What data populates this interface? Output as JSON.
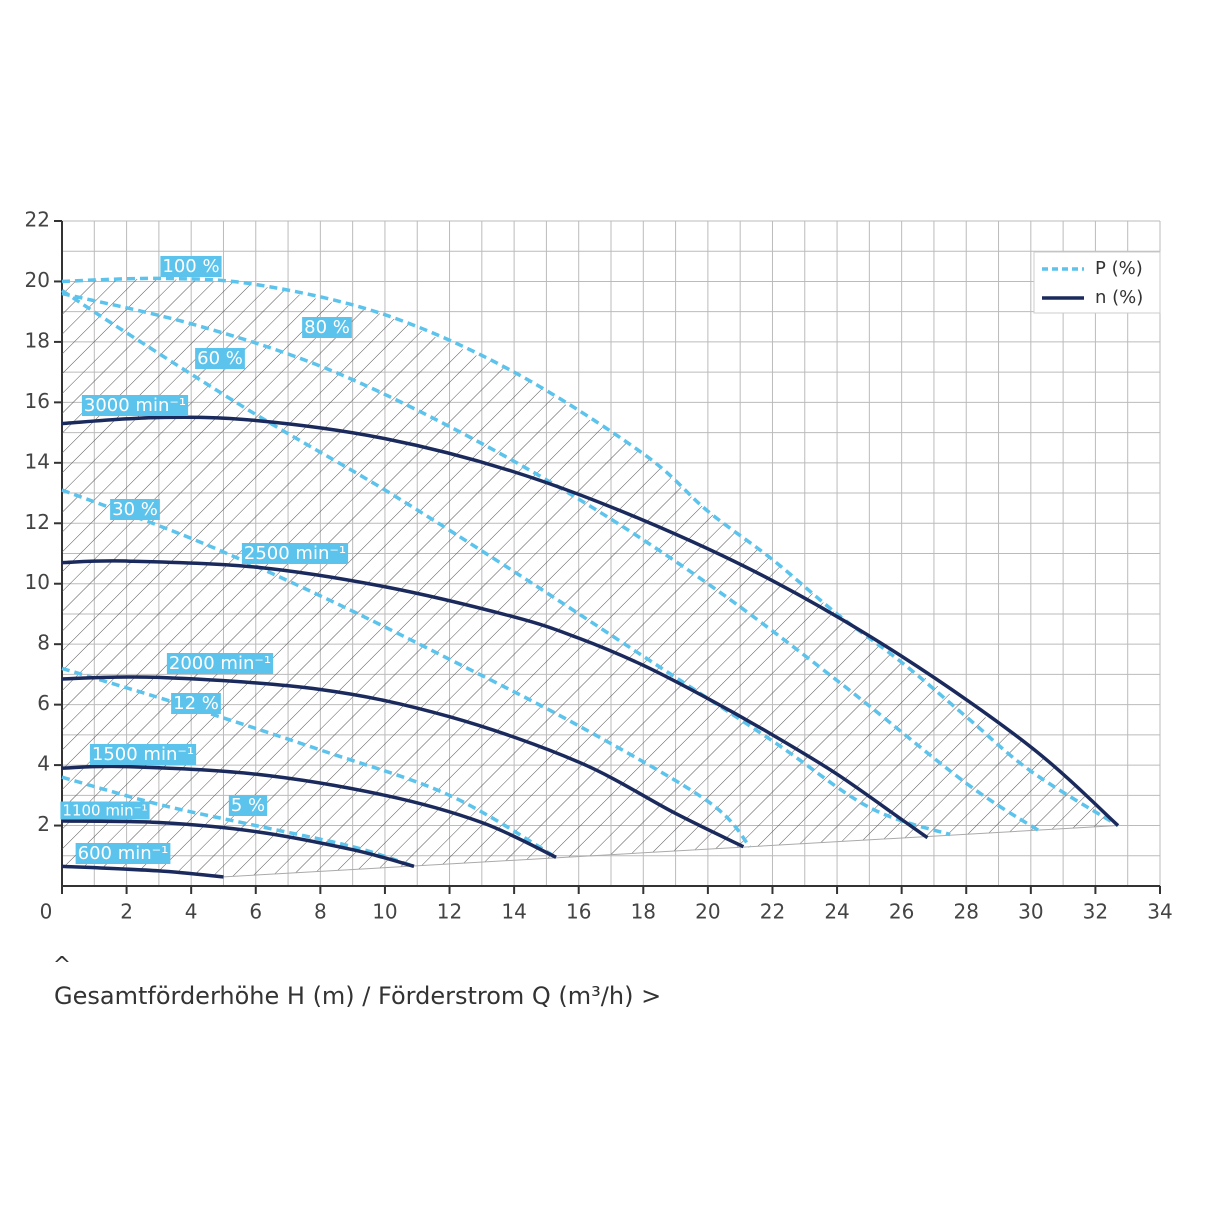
{
  "chart_data": {
    "type": "line",
    "xlim": [
      0,
      34
    ],
    "ylim": [
      0,
      22
    ],
    "xticks": [
      0,
      2,
      4,
      6,
      8,
      10,
      12,
      14,
      16,
      18,
      20,
      22,
      24,
      26,
      28,
      30,
      32,
      34
    ],
    "yticks": [
      2,
      4,
      6,
      8,
      10,
      12,
      14,
      16,
      18,
      20,
      22
    ],
    "grid": true,
    "minor_grid": 1,
    "legend_position": "upper right",
    "legend": [
      {
        "name": "P (%)",
        "color": "#5bc3ec",
        "dashed": true
      },
      {
        "name": "n (%)",
        "color": "#1b2a5c",
        "dashed": false
      }
    ],
    "axis_marker": "^",
    "axis_title": "Gesamtförderhöhe H (m) / Förderstrom Q (m³/h) >",
    "series": [
      {
        "name": "100 %",
        "group": "P (%)",
        "color": "#5bc3ec",
        "dashed": true,
        "x": [
          0,
          3,
          6,
          10,
          14,
          18,
          20,
          22,
          24,
          26,
          28,
          30,
          32.7
        ],
        "values": [
          20.0,
          20.1,
          19.9,
          18.9,
          17.0,
          14.3,
          12.4,
          10.8,
          9.0,
          7.4,
          5.6,
          3.8,
          2.0
        ]
      },
      {
        "name": "80 %",
        "group": "P (%)",
        "color": "#5bc3ec",
        "dashed": true,
        "x": [
          0,
          4,
          8,
          12,
          16,
          20,
          24,
          28,
          30.3
        ],
        "values": [
          19.6,
          18.6,
          17.2,
          15.2,
          12.8,
          10.0,
          6.8,
          3.4,
          1.8
        ]
      },
      {
        "name": "60 %",
        "group": "P (%)",
        "color": "#5bc3ec",
        "dashed": true,
        "x": [
          0,
          2,
          6,
          10,
          14,
          18,
          22,
          25,
          27.5
        ],
        "values": [
          19.7,
          18.3,
          15.6,
          13.1,
          10.4,
          7.6,
          4.8,
          2.6,
          1.7
        ]
      },
      {
        "name": "30 %",
        "group": "P (%)",
        "color": "#5bc3ec",
        "dashed": true,
        "x": [
          0,
          4,
          8,
          12,
          16,
          20,
          21.3
        ],
        "values": [
          13.1,
          11.5,
          9.6,
          7.5,
          5.3,
          2.8,
          1.3
        ]
      },
      {
        "name": "12 %",
        "group": "P (%)",
        "color": "#5bc3ec",
        "dashed": true,
        "x": [
          0,
          4,
          8,
          12,
          15.3
        ],
        "values": [
          7.2,
          5.9,
          4.5,
          3.0,
          0.95
        ]
      },
      {
        "name": "5 %",
        "group": "P (%)",
        "color": "#5bc3ec",
        "dashed": true,
        "x": [
          0,
          3,
          6,
          9,
          10.9
        ],
        "values": [
          3.6,
          2.7,
          2.0,
          1.3,
          0.65
        ]
      },
      {
        "name": "3000 min⁻¹",
        "group": "n (%)",
        "color": "#1b2a5c",
        "dashed": false,
        "x": [
          0,
          3,
          6,
          10,
          14,
          18,
          22,
          26,
          30,
          32.7
        ],
        "values": [
          15.3,
          15.5,
          15.4,
          14.8,
          13.7,
          12.1,
          10.1,
          7.6,
          4.6,
          2.0
        ]
      },
      {
        "name": "2500 min⁻¹",
        "group": "n (%)",
        "color": "#1b2a5c",
        "dashed": false,
        "x": [
          0,
          2,
          6,
          10,
          14,
          16,
          18,
          20,
          22,
          24,
          26,
          26.8
        ],
        "values": [
          10.7,
          10.75,
          10.55,
          9.9,
          8.9,
          8.2,
          7.3,
          6.2,
          5.0,
          3.7,
          2.2,
          1.6
        ]
      },
      {
        "name": "2000 min⁻¹",
        "group": "n (%)",
        "color": "#1b2a5c",
        "dashed": false,
        "x": [
          0,
          3,
          8,
          12,
          16,
          19,
          21.1
        ],
        "values": [
          6.85,
          6.9,
          6.5,
          5.6,
          4.1,
          2.4,
          1.3
        ]
      },
      {
        "name": "1500 min⁻¹",
        "group": "n (%)",
        "color": "#1b2a5c",
        "dashed": false,
        "x": [
          0,
          2,
          6,
          10,
          13,
          15.3
        ],
        "values": [
          3.9,
          3.95,
          3.7,
          3.0,
          2.1,
          0.95
        ]
      },
      {
        "name": "1100 min⁻¹",
        "group": "n (%)",
        "color": "#1b2a5c",
        "dashed": false,
        "x": [
          0,
          3,
          6,
          9,
          10.9
        ],
        "values": [
          2.15,
          2.1,
          1.8,
          1.2,
          0.65
        ]
      },
      {
        "name": "600 min⁻¹",
        "group": "n (%)",
        "color": "#1b2a5c",
        "dashed": false,
        "x": [
          0,
          3,
          5
        ],
        "values": [
          0.65,
          0.5,
          0.3
        ]
      }
    ]
  }
}
